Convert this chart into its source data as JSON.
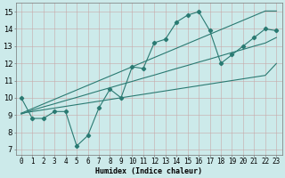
{
  "x": [
    0,
    1,
    2,
    3,
    4,
    5,
    6,
    7,
    8,
    9,
    10,
    11,
    12,
    13,
    14,
    15,
    16,
    17,
    18,
    19,
    20,
    21,
    22,
    23
  ],
  "y_data": [
    10.0,
    8.8,
    8.8,
    9.2,
    9.2,
    7.2,
    7.8,
    9.4,
    10.5,
    10.0,
    11.8,
    11.7,
    13.2,
    13.4,
    14.4,
    14.8,
    15.0,
    13.9,
    12.0,
    12.5,
    13.0,
    13.5,
    14.0,
    13.9
  ],
  "y_trend1": [
    9.1,
    9.37,
    9.64,
    9.91,
    10.18,
    10.45,
    10.72,
    10.99,
    11.26,
    11.53,
    11.8,
    12.07,
    12.34,
    12.61,
    12.88,
    13.15,
    13.42,
    13.69,
    13.96,
    14.23,
    14.5,
    14.77,
    15.04,
    15.04
  ],
  "y_trend2": [
    9.1,
    9.2,
    9.3,
    9.4,
    9.5,
    9.6,
    9.7,
    9.8,
    9.9,
    10.0,
    10.1,
    10.2,
    10.3,
    10.4,
    10.5,
    10.6,
    10.7,
    10.8,
    10.9,
    11.0,
    11.1,
    11.2,
    11.3,
    11.99
  ],
  "y_trend3": [
    9.05,
    9.28,
    9.47,
    9.65,
    9.84,
    10.02,
    10.21,
    10.4,
    10.58,
    10.77,
    10.95,
    11.14,
    11.32,
    11.51,
    11.7,
    11.88,
    12.07,
    12.25,
    12.44,
    12.63,
    12.81,
    13.0,
    13.18,
    13.5
  ],
  "line_color": "#2a7a72",
  "bg_color": "#cceaea",
  "grid_color": "#b8d8d8",
  "xlabel": "Humidex (Indice chaleur)",
  "ylabel_ticks": [
    7,
    8,
    9,
    10,
    11,
    12,
    13,
    14,
    15
  ],
  "xlim": [
    -0.5,
    23.5
  ],
  "ylim": [
    6.7,
    15.5
  ],
  "marker": "D",
  "markersize": 2.2,
  "tick_fontsize": 5.5,
  "xlabel_fontsize": 6.0
}
